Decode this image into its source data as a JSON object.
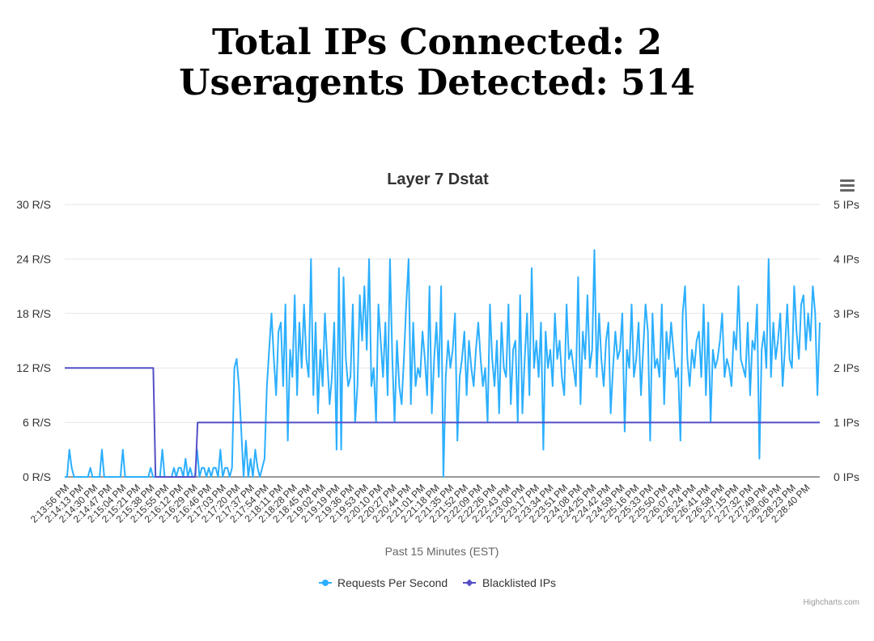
{
  "header": {
    "line1": "Total IPs Connected: 2",
    "line2": "Useragents Detected: 514"
  },
  "menu": {
    "icon": "hamburger-menu-icon"
  },
  "credits": "Highcharts.com",
  "chart_data": {
    "type": "line",
    "title": "Layer 7 Dstat",
    "xlabel": "Past 15 Minutes (EST)",
    "y_left": {
      "ticks": [
        "0 R/S",
        "6 R/S",
        "12 R/S",
        "18 R/S",
        "24 R/S",
        "30 R/S"
      ],
      "ylim": [
        0,
        30
      ]
    },
    "y_right": {
      "ticks": [
        "0 IPs",
        "1 IPs",
        "2 IPs",
        "3 IPs",
        "4 IPs",
        "5 IPs"
      ],
      "ylim": [
        0,
        5
      ]
    },
    "x_tick_labels": [
      "2:13:56 PM",
      "2:14:13 PM",
      "2:14:30 PM",
      "2:14:47 PM",
      "2:15:04 PM",
      "2:15:21 PM",
      "2:15:38 PM",
      "2:15:55 PM",
      "2:16:12 PM",
      "2:16:29 PM",
      "2:16:46 PM",
      "2:17:03 PM",
      "2:17:20 PM",
      "2:17:37 PM",
      "2:17:54 PM",
      "2:18:11 PM",
      "2:18:28 PM",
      "2:18:45 PM",
      "2:19:02 PM",
      "2:19:19 PM",
      "2:19:36 PM",
      "2:19:53 PM",
      "2:20:10 PM",
      "2:20:27 PM",
      "2:20:44 PM",
      "2:21:01 PM",
      "2:21:18 PM",
      "2:21:35 PM",
      "2:21:52 PM",
      "2:22:09 PM",
      "2:22:26 PM",
      "2:22:43 PM",
      "2:23:00 PM",
      "2:23:17 PM",
      "2:23:34 PM",
      "2:23:51 PM",
      "2:24:08 PM",
      "2:24:25 PM",
      "2:24:42 PM",
      "2:24:59 PM",
      "2:25:16 PM",
      "2:25:33 PM",
      "2:25:50 PM",
      "2:26:07 PM",
      "2:26:24 PM",
      "2:26:41 PM",
      "2:26:58 PM",
      "2:27:15 PM",
      "2:27:32 PM",
      "2:27:49 PM",
      "2:28:06 PM",
      "2:28:23 PM",
      "2:28:40 PM"
    ],
    "grid": true,
    "legend_position": "bottom-center",
    "series": [
      {
        "name": "Requests Per Second",
        "axis": "left",
        "color": "#2caffe",
        "values": [
          0,
          0,
          3,
          1,
          0,
          0,
          0,
          0,
          0,
          0,
          0,
          1,
          0,
          0,
          0,
          0,
          3,
          0,
          0,
          0,
          0,
          0,
          0,
          0,
          0,
          3,
          0,
          0,
          0,
          0,
          0,
          0,
          0,
          0,
          0,
          0,
          0,
          1,
          0,
          0,
          0,
          0,
          3,
          0,
          0,
          0,
          0,
          1,
          0,
          1,
          1,
          0,
          2,
          0,
          1,
          0,
          0,
          3,
          0,
          1,
          1,
          0,
          1,
          0,
          1,
          1,
          0,
          3,
          0,
          1,
          1,
          0,
          1,
          12,
          13,
          10,
          5,
          0,
          4,
          0,
          2,
          0,
          3,
          1,
          0,
          1,
          2,
          10,
          14,
          18,
          13,
          9,
          16,
          17,
          10,
          19,
          4,
          14,
          11,
          20,
          9,
          17,
          12,
          19,
          13,
          11,
          24,
          9,
          17,
          7,
          14,
          10,
          18,
          13,
          8,
          11,
          17,
          3,
          23,
          3,
          22,
          13,
          10,
          11,
          19,
          6,
          10,
          20,
          15,
          21,
          14,
          24,
          10,
          12,
          6,
          19,
          15,
          11,
          17,
          9,
          24,
          13,
          6,
          15,
          10,
          8,
          13,
          19,
          24,
          8,
          17,
          10,
          12,
          11,
          16,
          13,
          9,
          21,
          7,
          13,
          17,
          11,
          21,
          0,
          11,
          15,
          12,
          14,
          18,
          4,
          11,
          13,
          16,
          9,
          15,
          12,
          10,
          14,
          17,
          13,
          10,
          12,
          6,
          19,
          13,
          10,
          15,
          7,
          17,
          12,
          11,
          19,
          8,
          14,
          15,
          6,
          20,
          7,
          13,
          18,
          9,
          23,
          12,
          15,
          11,
          17,
          3,
          16,
          12,
          14,
          10,
          18,
          13,
          15,
          11,
          9,
          19,
          13,
          14,
          12,
          10,
          22,
          8,
          16,
          13,
          20,
          12,
          14,
          25,
          11,
          18,
          13,
          10,
          15,
          17,
          7,
          12,
          16,
          13,
          14,
          18,
          5,
          14,
          12,
          19,
          11,
          13,
          17,
          9,
          14,
          19,
          16,
          4,
          18,
          12,
          13,
          11,
          19,
          8,
          16,
          13,
          17,
          14,
          11,
          12,
          4,
          18,
          21,
          13,
          10,
          14,
          12,
          15,
          16,
          11,
          19,
          9,
          17,
          6,
          14,
          12,
          13,
          15,
          18,
          11,
          13,
          12,
          10,
          16,
          14,
          21,
          13,
          12,
          11,
          17,
          9,
          15,
          14,
          19,
          2,
          14,
          16,
          12,
          24,
          11,
          17,
          13,
          15,
          18,
          10,
          14,
          19,
          13,
          12,
          21,
          16,
          13,
          19,
          20,
          14,
          18,
          15,
          21,
          18,
          9,
          17
        ]
      },
      {
        "name": "Blacklisted IPs",
        "axis": "right",
        "color": "#544fc5",
        "values": [
          2,
          2,
          2,
          2,
          2,
          2,
          2,
          2,
          2,
          2,
          2,
          2,
          2,
          2,
          2,
          2,
          2,
          2,
          2,
          2,
          2,
          2,
          2,
          2,
          2,
          2,
          2,
          2,
          2,
          2,
          2,
          2,
          2,
          2,
          2,
          2,
          2,
          2,
          2,
          2,
          2,
          0,
          0,
          0,
          0,
          0,
          0,
          0,
          0,
          0,
          0,
          0,
          0,
          0,
          0,
          0,
          0,
          0,
          0,
          0,
          1,
          1,
          1,
          1,
          1,
          1,
          1,
          1,
          1,
          1,
          1,
          1,
          1,
          1,
          1,
          1,
          1,
          1,
          1,
          1,
          1,
          1,
          1,
          1,
          1,
          1,
          1,
          1,
          1,
          1,
          1,
          1,
          1,
          1,
          1,
          1,
          1,
          1,
          1,
          1,
          1,
          1,
          1,
          1,
          1,
          1,
          1,
          1,
          1,
          1,
          1,
          1,
          1,
          1,
          1,
          1,
          1,
          1,
          1,
          1,
          1,
          1,
          1,
          1,
          1,
          1,
          1,
          1,
          1,
          1,
          1,
          1,
          1,
          1,
          1,
          1,
          1,
          1,
          1,
          1,
          1,
          1,
          1,
          1,
          1,
          1,
          1,
          1,
          1,
          1,
          1,
          1,
          1,
          1,
          1,
          1,
          1,
          1,
          1,
          1,
          1,
          1,
          1,
          1,
          1,
          1,
          1,
          1,
          1,
          1,
          1,
          1,
          1,
          1,
          1,
          1,
          1,
          1,
          1,
          1,
          1,
          1,
          1,
          1,
          1,
          1,
          1,
          1,
          1,
          1,
          1,
          1,
          1,
          1,
          1,
          1,
          1,
          1,
          1,
          1,
          1,
          1,
          1,
          1,
          1,
          1,
          1,
          1,
          1,
          1,
          1,
          1,
          1,
          1,
          1,
          1,
          1,
          1,
          1,
          1,
          1,
          1,
          1,
          1,
          1,
          1,
          1,
          1,
          1,
          1,
          1,
          1,
          1,
          1,
          1,
          1,
          1,
          1,
          1,
          1,
          1,
          1,
          1,
          1,
          1,
          1,
          1,
          1,
          1,
          1,
          1,
          1,
          1,
          1,
          1,
          1,
          1,
          1,
          1,
          1,
          1,
          1,
          1,
          1,
          1,
          1,
          1,
          1,
          1,
          1,
          1,
          1,
          1,
          1,
          1,
          1,
          1,
          1,
          1,
          1,
          1,
          1,
          1,
          1,
          1,
          1,
          1,
          1,
          1,
          1,
          1,
          1,
          1,
          1,
          1,
          1,
          1,
          1,
          1,
          1,
          1,
          1,
          1,
          1,
          1,
          1,
          1,
          1,
          1,
          1,
          1,
          1,
          1,
          1,
          1,
          1,
          1,
          1,
          1,
          1,
          1,
          1,
          1,
          1,
          1,
          1,
          1,
          1,
          1,
          1,
          1,
          1,
          1,
          1,
          1,
          1,
          1,
          1,
          1,
          1,
          1,
          1
        ]
      }
    ]
  }
}
